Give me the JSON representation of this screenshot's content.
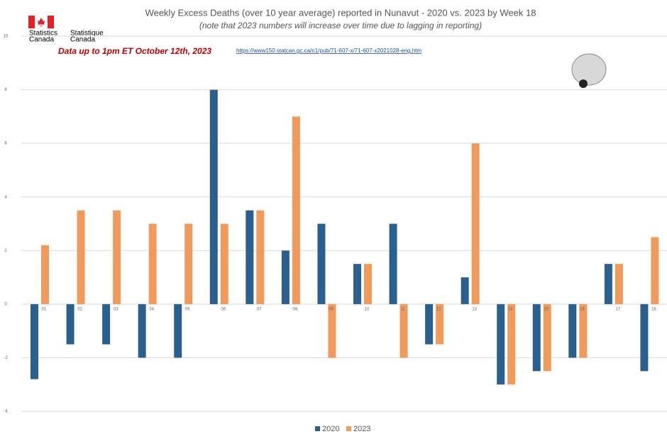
{
  "chart_data": {
    "type": "bar",
    "title": "Weekly Excess Deaths (over 10 year average) reported in Nunavut - 2020 vs. 2023 by Week 18",
    "subtitle": "(note that 2023 numbers will increase over time due to lagging in reporting)",
    "annotation": "Data up to 1pm ET October 12th, 2023",
    "source_url": "https://www150.statcan.gc.ca/n1/pub/71-607-x/71-607-x2021028-eng.htm",
    "logo": {
      "en": [
        "Statistics",
        "Canada"
      ],
      "fr": [
        "Statistique",
        "Canada"
      ]
    },
    "categories": [
      "01",
      "02",
      "03",
      "04",
      "05",
      "06",
      "07",
      "08",
      "09",
      "10",
      "11",
      "12",
      "13",
      "14",
      "15",
      "16",
      "17",
      "18"
    ],
    "series": [
      {
        "name": "2020",
        "color": "#2b5f8e",
        "values": [
          -2.8,
          -1.5,
          -1.5,
          -2,
          -2,
          8,
          3.5,
          2,
          3,
          1.5,
          3,
          -1.5,
          1,
          -3,
          -2.5,
          -2,
          1.5,
          -2.5
        ]
      },
      {
        "name": "2023",
        "color": "#f09a5c",
        "values": [
          2.2,
          3.5,
          3.5,
          3,
          3,
          3,
          3.5,
          7,
          -2,
          1.5,
          -2,
          -1.5,
          6,
          -3,
          -2.5,
          -2,
          1.5,
          2.5
        ]
      }
    ],
    "ylim": [
      -4,
      10
    ],
    "yticks": [
      -4,
      -2,
      0,
      2,
      4,
      6,
      8,
      10
    ],
    "grid": true,
    "legend": "bottom"
  }
}
